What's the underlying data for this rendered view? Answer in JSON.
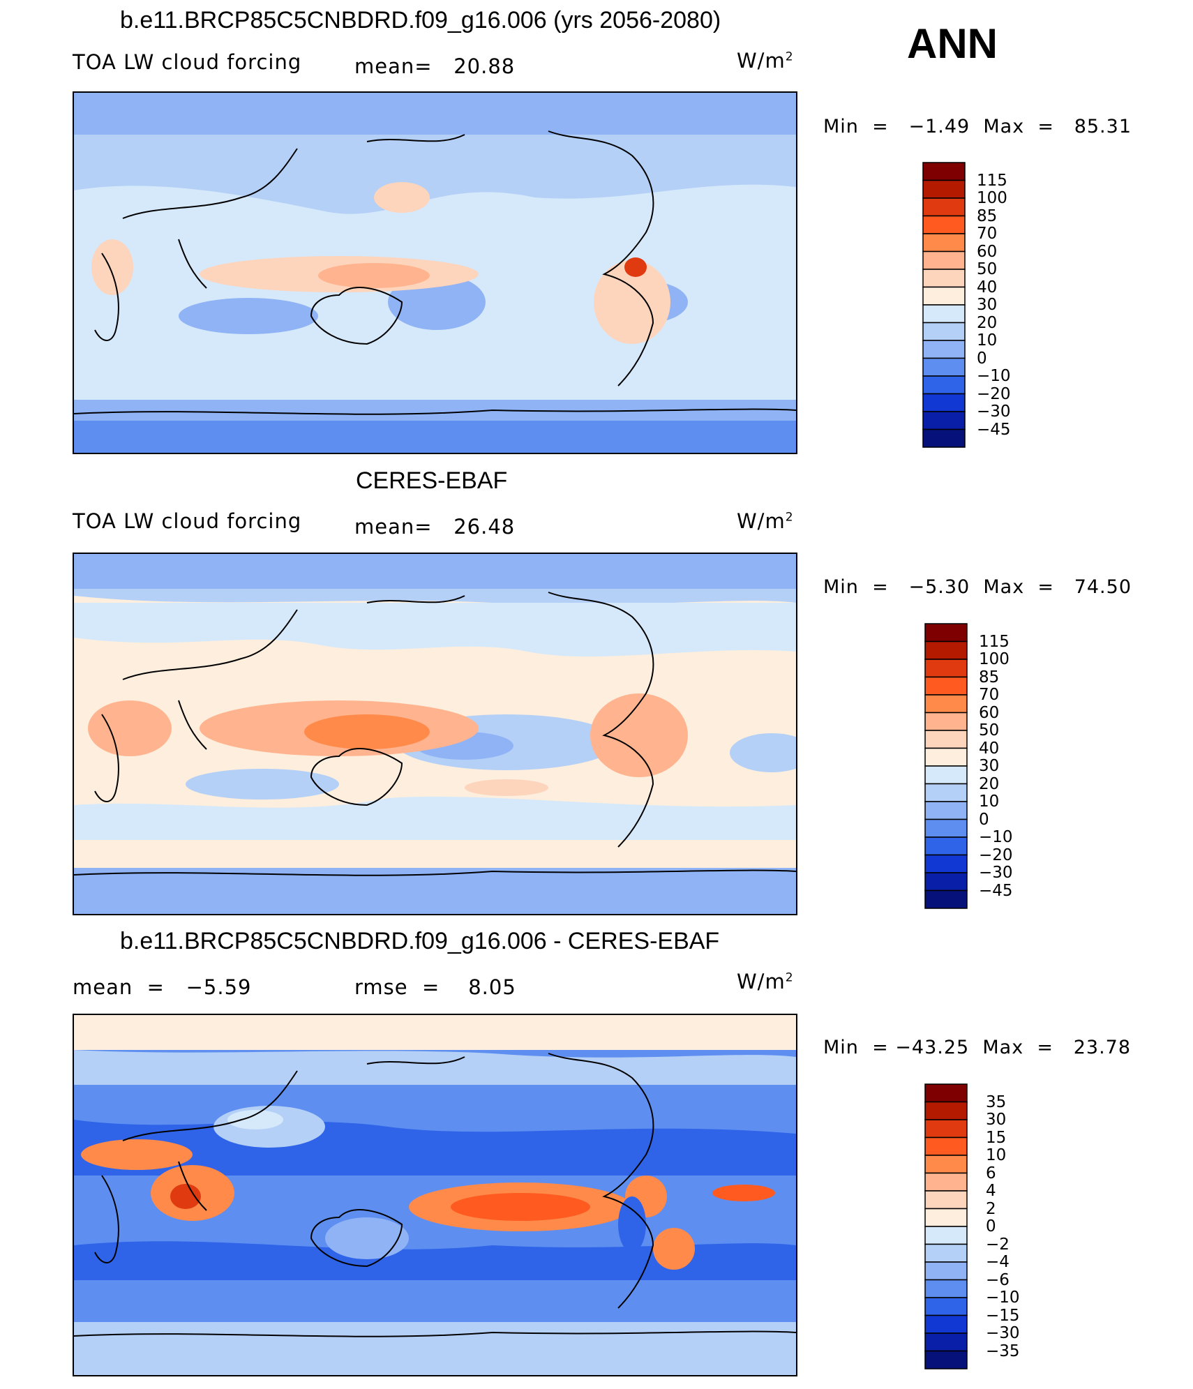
{
  "season": "ANN",
  "panels": [
    {
      "title": "b.e11.BRCP85C5CNBDRD.f09_g16.006 (yrs 2056-2080)",
      "left_label": "TOA LW cloud forcing",
      "center_label": "mean=   20.88",
      "units": "W/m",
      "units_sup": "2",
      "minmax": "Min  =   −1.49  Max  =   85.31",
      "colorbar_labels": [
        "115",
        "100",
        "85",
        "70",
        "60",
        "50",
        "40",
        "30",
        "20",
        "10",
        "0",
        "−10",
        "−20",
        "−30",
        "−45"
      ]
    },
    {
      "title": "CERES-EBAF",
      "left_label": "TOA LW cloud forcing",
      "center_label": "mean=   26.48",
      "units": "W/m",
      "units_sup": "2",
      "minmax": "Min  =   −5.30  Max  =   74.50",
      "colorbar_labels": [
        "115",
        "100",
        "85",
        "70",
        "60",
        "50",
        "40",
        "30",
        "20",
        "10",
        "0",
        "−10",
        "−20",
        "−30",
        "−45"
      ]
    },
    {
      "title": "b.e11.BRCP85C5CNBDRD.f09_g16.006 - CERES-EBAF",
      "left_label": "mean  =   −5.59",
      "center_label": "rmse  =    8.05",
      "units": "W/m",
      "units_sup": "2",
      "minmax": "Min  = −43.25  Max  =   23.78",
      "colorbar_labels": [
        "35",
        "30",
        "15",
        "10",
        "6",
        "4",
        "2",
        "0",
        "−2",
        "−4",
        "−6",
        "−10",
        "−15",
        "−30",
        "−35"
      ]
    }
  ],
  "colors": {
    "scale": [
      "#7f0000",
      "#b31a00",
      "#e03a10",
      "#ff5a20",
      "#ff8a4a",
      "#ffb48f",
      "#fdd4bc",
      "#fdeedd",
      "#d6e9fb",
      "#b4d0f7",
      "#8fb3f5",
      "#5e8ff0",
      "#2f63e8",
      "#1238d4",
      "#0a1fa8",
      "#06127a"
    ]
  },
  "chart_data": [
    {
      "type": "heatmap",
      "title": "b.e11.BRCP85C5CNBDRD.f09_g16.006 (yrs 2056-2080)",
      "variable": "TOA LW cloud forcing",
      "units": "W/m2",
      "mean": 20.88,
      "min": -1.49,
      "max": 85.31,
      "levels": [
        -45,
        -30,
        -20,
        -10,
        0,
        10,
        20,
        30,
        40,
        50,
        60,
        70,
        85,
        100,
        115
      ]
    },
    {
      "type": "heatmap",
      "title": "CERES-EBAF",
      "variable": "TOA LW cloud forcing",
      "units": "W/m2",
      "mean": 26.48,
      "min": -5.3,
      "max": 74.5,
      "levels": [
        -45,
        -30,
        -20,
        -10,
        0,
        10,
        20,
        30,
        40,
        50,
        60,
        70,
        85,
        100,
        115
      ]
    },
    {
      "type": "heatmap",
      "title": "b.e11.BRCP85C5CNBDRD.f09_g16.006 - CERES-EBAF",
      "units": "W/m2",
      "mean": -5.59,
      "rmse": 8.05,
      "min": -43.25,
      "max": 23.78,
      "levels": [
        -35,
        -30,
        -15,
        -10,
        -6,
        -4,
        -2,
        0,
        2,
        4,
        6,
        10,
        15,
        30,
        35
      ]
    }
  ]
}
